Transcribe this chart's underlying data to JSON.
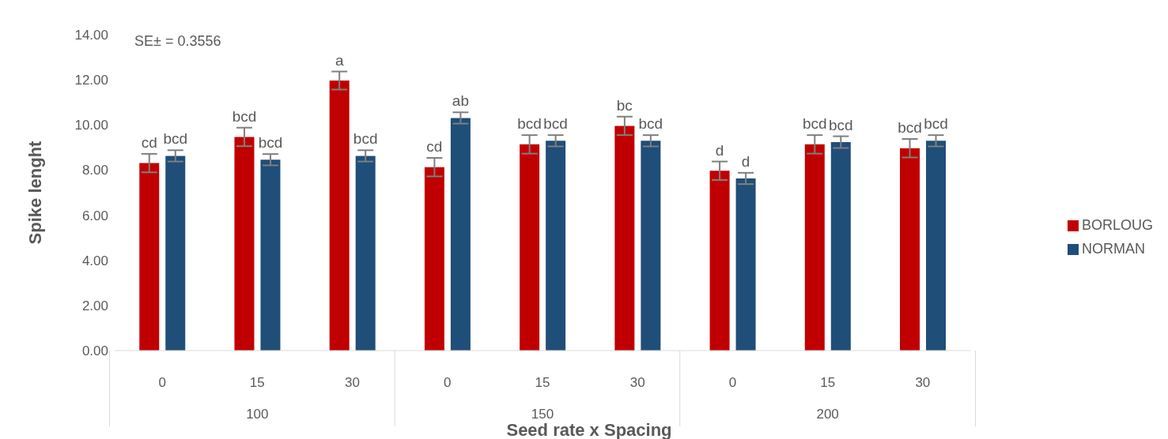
{
  "chart_data": {
    "type": "bar",
    "xlabel": "Seed rate x Spacing",
    "ylabel": "Spike lenght",
    "annotations": [
      "SE± = 0.3556",
      "100",
      "150",
      "200"
    ],
    "categories": [
      "0",
      "15",
      "30",
      "0",
      "15",
      "30",
      "0",
      "15",
      "30"
    ],
    "series": [
      {
        "name": "BORLOUG",
        "color": "#c00000",
        "values": [
          8.31,
          9.47,
          11.97,
          8.13,
          9.14,
          9.96,
          7.97,
          9.14,
          8.97
        ],
        "errors": [
          0.41,
          0.41,
          0.4,
          0.41,
          0.41,
          0.41,
          0.41,
          0.41,
          0.41
        ],
        "value_labels": [
          "cd",
          "bcd",
          "a",
          "cd",
          "bcd",
          "bc",
          "d",
          "bcd",
          "bcd"
        ]
      },
      {
        "name": "NORMAN",
        "color": "#1f4e79",
        "values": [
          8.63,
          8.46,
          8.63,
          10.31,
          9.3,
          9.3,
          7.63,
          9.24,
          9.3
        ],
        "errors": [
          0.25,
          0.25,
          0.25,
          0.25,
          0.25,
          0.25,
          0.25,
          0.26,
          0.25
        ],
        "value_labels": [
          "bcd",
          "bcd",
          "bcd",
          "ab",
          "bcd",
          "bcd",
          "d",
          "bcd",
          "bcd"
        ]
      }
    ],
    "ylim": [
      0,
      14
    ],
    "yticks": [
      {
        "value": 0,
        "label": "0.00"
      },
      {
        "value": 2,
        "label": "2.00"
      },
      {
        "value": 4,
        "label": "4.00"
      },
      {
        "value": 6,
        "label": "6.00"
      },
      {
        "value": 8,
        "label": "8.00"
      },
      {
        "value": 10,
        "label": "10.00"
      },
      {
        "value": 12,
        "label": "12.00"
      },
      {
        "value": 14,
        "label": "14.00"
      }
    ],
    "grid": false,
    "legend": "right"
  }
}
